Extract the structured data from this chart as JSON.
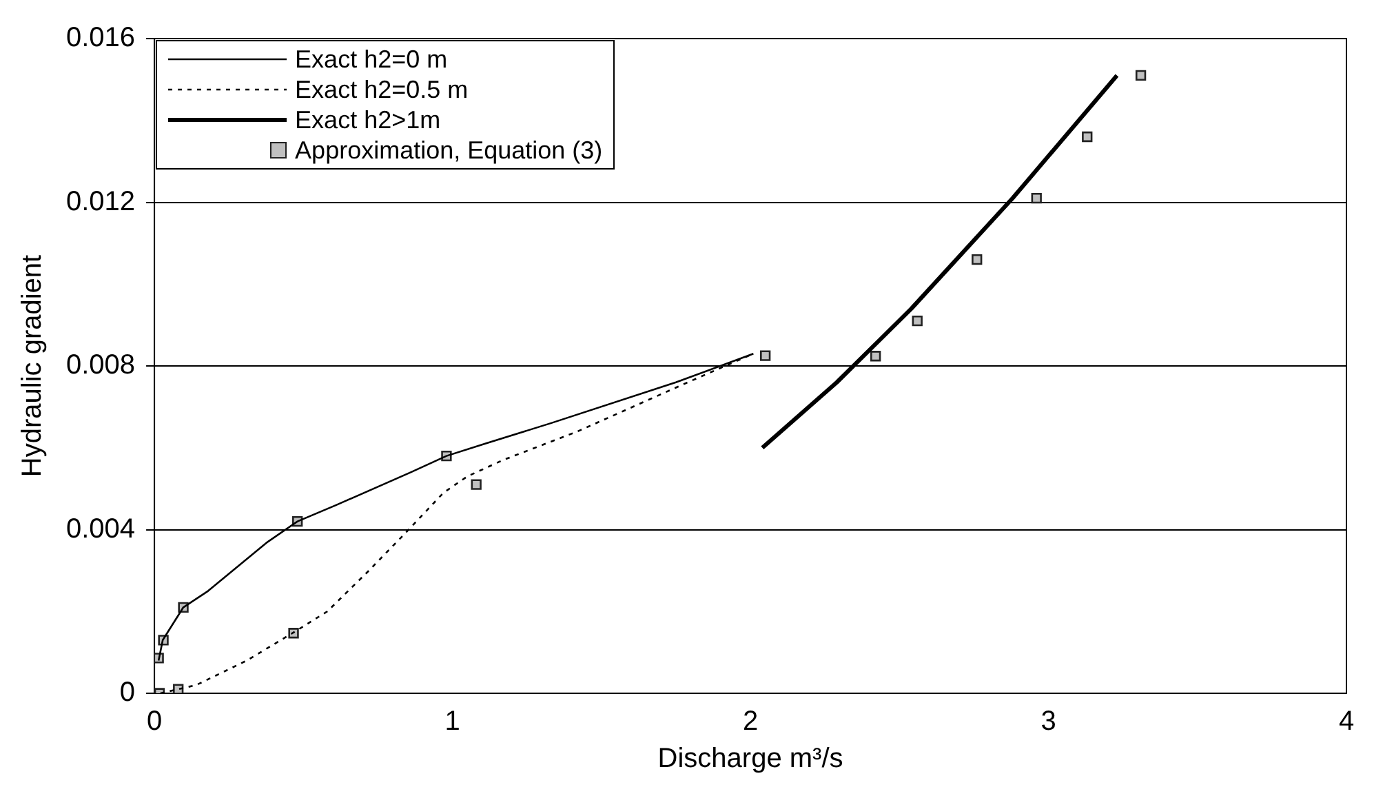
{
  "chart_data": {
    "type": "line",
    "xlabel": "Discharge m³/s",
    "ylabel": "Hydraulic gradient",
    "xlim": [
      0,
      4
    ],
    "xticks": [
      0,
      1,
      2,
      3,
      4
    ],
    "ylim": [
      0,
      0.016
    ],
    "yticks": [
      0,
      0.004,
      0.008,
      0.012,
      0.016
    ],
    "grid": "y",
    "legend": "top left",
    "series": [
      {
        "name": "Exact h2=0 m",
        "type": "line",
        "color": "#000000",
        "line_style": "solid",
        "marker": "none",
        "x": [
          0.014,
          0.028,
          0.097,
          0.18,
          0.38,
          0.48,
          0.61,
          0.86,
          0.98,
          1.11,
          1.33,
          1.75,
          2.01
        ],
        "values": [
          0.0008,
          0.0013,
          0.0021,
          0.0025,
          0.0037,
          0.0042,
          0.0046,
          0.0054,
          0.0058,
          0.0061,
          0.0066,
          0.0076,
          0.0083
        ]
      },
      {
        "name": "Exact h2=0.5 m",
        "type": "line",
        "color": "#000000",
        "line_style": "dotted",
        "marker": "none",
        "x": [
          0.02,
          0.14,
          0.31,
          0.47,
          0.58,
          0.72,
          0.84,
          0.97,
          1.05,
          1.17,
          1.42,
          1.79,
          2.01
        ],
        "values": [
          0,
          0.0002,
          0.0008,
          0.0015,
          0.002,
          0.003,
          0.0039,
          0.0049,
          0.0053,
          0.0057,
          0.0064,
          0.0076,
          0.0083
        ]
      },
      {
        "name": "Exact h2>1m",
        "type": "line",
        "color": "#000000",
        "line_style": "solid",
        "marker": "none",
        "x": [
          2.04,
          2.29,
          2.54,
          2.88,
          3.23
        ],
        "values": [
          0.006,
          0.0076,
          0.0094,
          0.0121,
          0.0151
        ]
      },
      {
        "name": "Approximation, Equation (3)",
        "type": "scatter",
        "color": "#c0c0c0",
        "marker": "square",
        "x": [
          0.017,
          0.08,
          0.014,
          0.03,
          0.097,
          0.467,
          0.48,
          0.98,
          1.08,
          2.05,
          2.42,
          2.56,
          2.76,
          2.96,
          3.13,
          3.31
        ],
        "values": [
          0,
          0.0001,
          0.00086,
          0.0013,
          0.0021,
          0.00147,
          0.0042,
          0.0058,
          0.0051,
          0.00825,
          0.00824,
          0.0091,
          0.0106,
          0.0121,
          0.0136,
          0.0151
        ]
      }
    ]
  }
}
